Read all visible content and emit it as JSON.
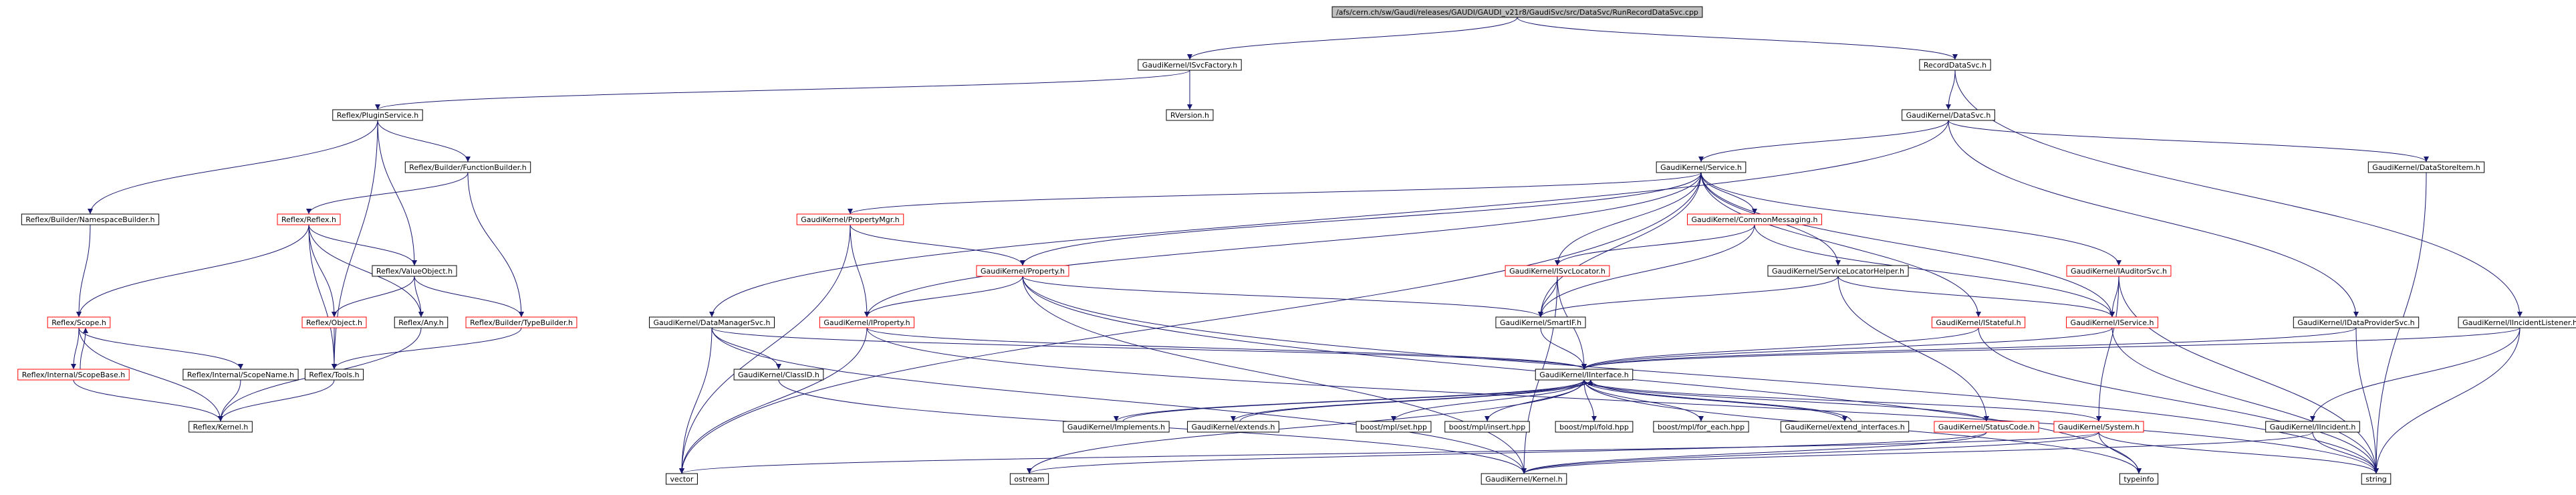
{
  "nodes": [
    {
      "label": "/afs/cern.ch/sw/Gaudi/releases/GAUDI/GAUDI_v21r8/GaudiSvc/src/DataSvc/RunRecordDataSvc.cpp"
    },
    {
      "label": "GaudiKernel/ISvcFactory.h"
    },
    {
      "label": "RecordDataSvc.h"
    },
    {
      "label": "Reflex/PluginService.h"
    },
    {
      "label": "RVersion.h"
    },
    {
      "label": "GaudiKernel/DataSvc.h"
    },
    {
      "label": "Reflex/Builder/FunctionBuilder.h"
    },
    {
      "label": "GaudiKernel/Service.h"
    },
    {
      "label": "GaudiKernel/DataStoreItem.h"
    },
    {
      "label": "Reflex/Builder/NamespaceBuilder.h"
    },
    {
      "label": "Reflex/Reflex.h"
    },
    {
      "label": "GaudiKernel/PropertyMgr.h"
    },
    {
      "label": "GaudiKernel/CommonMessaging.h"
    },
    {
      "label": "Reflex/ValueObject.h"
    },
    {
      "label": "GaudiKernel/ISvcLocator.h"
    },
    {
      "label": "GaudiKernel/ServiceLocatorHelper.h"
    },
    {
      "label": "GaudiKernel/IAuditorSvc.h"
    },
    {
      "label": "GaudiKernel/Property.h"
    },
    {
      "label": "Reflex/Scope.h"
    },
    {
      "label": "Reflex/Object.h"
    },
    {
      "label": "Reflex/Any.h"
    },
    {
      "label": "Reflex/Builder/TypeBuilder.h"
    },
    {
      "label": "GaudiKernel/DataManagerSvc.h"
    },
    {
      "label": "GaudiKernel/IProperty.h"
    },
    {
      "label": "GaudiKernel/SmartIF.h"
    },
    {
      "label": "GaudiKernel/IStateful.h"
    },
    {
      "label": "GaudiKernel/IService.h"
    },
    {
      "label": "GaudiKernel/IDataProviderSvc.h"
    },
    {
      "label": "GaudiKernel/IIncidentListener.h"
    },
    {
      "label": "Reflex/Internal/ScopeBase.h"
    },
    {
      "label": "Reflex/Internal/ScopeName.h"
    },
    {
      "label": "Reflex/Tools.h"
    },
    {
      "label": "GaudiKernel/ClassID.h"
    },
    {
      "label": "GaudiKernel/IInterface.h"
    },
    {
      "label": "Reflex/Kernel.h"
    },
    {
      "label": "GaudiKernel/Implements.h"
    },
    {
      "label": "GaudiKernel/extends.h"
    },
    {
      "label": "boost/mpl/set.hpp"
    },
    {
      "label": "boost/mpl/insert.hpp"
    },
    {
      "label": "boost/mpl/fold.hpp"
    },
    {
      "label": "boost/mpl/for_each.hpp"
    },
    {
      "label": "GaudiKernel/extend_interfaces.h"
    },
    {
      "label": "GaudiKernel/StatusCode.h"
    },
    {
      "label": "GaudiKernel/System.h"
    },
    {
      "label": "GaudiKernel/IIncident.h"
    },
    {
      "label": "vector"
    },
    {
      "label": "ostream"
    },
    {
      "label": "GaudiKernel/Kernel.h"
    },
    {
      "label": "typeinfo"
    },
    {
      "label": "string"
    }
  ]
}
